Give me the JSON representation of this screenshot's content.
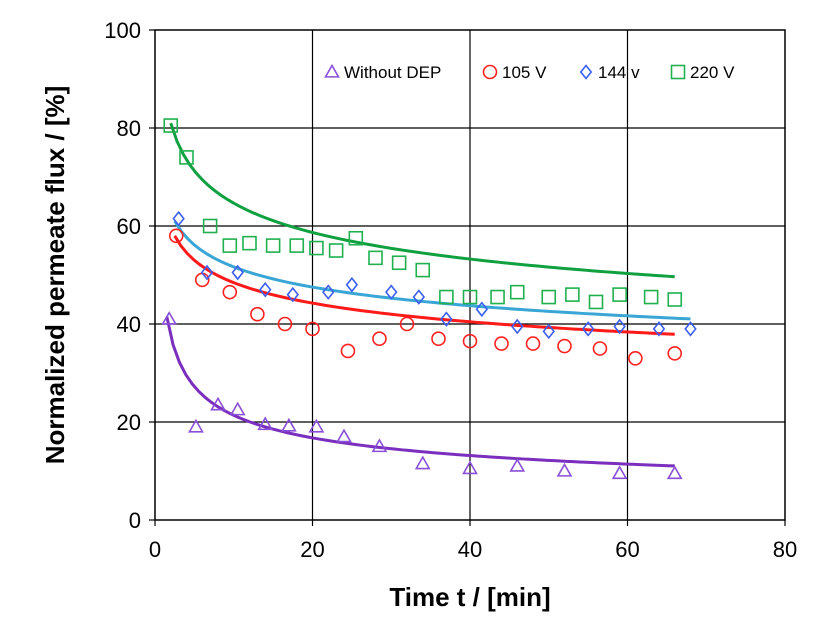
{
  "chart_data": {
    "type": "scatter",
    "title": "",
    "xlabel": "Time t / [min]",
    "ylabel": "Normalized permeate flux / [%]",
    "xlim": [
      0,
      80
    ],
    "ylim": [
      0,
      100
    ],
    "xticks": [
      "0",
      "20",
      "40",
      "60",
      "80"
    ],
    "yticks": [
      "0",
      "20",
      "40",
      "60",
      "80",
      "100"
    ],
    "grid": true,
    "legend_position": "top-right",
    "series": [
      {
        "name": "Without DEP",
        "marker": "triangle",
        "marker_color": "#8a4fd8",
        "fit_color": "#7b2fbe",
        "points": [
          [
            1.8,
            41
          ],
          [
            5.2,
            19
          ],
          [
            8,
            23.5
          ],
          [
            10.5,
            22.5
          ],
          [
            14,
            19.5
          ],
          [
            17,
            19.2
          ],
          [
            20.5,
            19
          ],
          [
            24,
            17
          ],
          [
            28.5,
            15
          ],
          [
            34,
            11.5
          ],
          [
            40,
            10.5
          ],
          [
            46,
            11
          ],
          [
            52,
            10
          ],
          [
            59,
            9.5
          ],
          [
            66,
            9.5
          ]
        ],
        "fit": {
          "a": 41.5,
          "b": 0.35,
          "t_start": 1.5,
          "t_end": 66
        }
      },
      {
        "name": "105 V",
        "marker": "circle",
        "marker_color": "#ff2020",
        "fit_color": "#ff1a1a",
        "points": [
          [
            2.7,
            58
          ],
          [
            6,
            49
          ],
          [
            9.5,
            46.5
          ],
          [
            13,
            42
          ],
          [
            16.5,
            40
          ],
          [
            20,
            39
          ],
          [
            24.5,
            34.5
          ],
          [
            28.5,
            37
          ],
          [
            32,
            40
          ],
          [
            36,
            37
          ],
          [
            40,
            36.5
          ],
          [
            44,
            36
          ],
          [
            48,
            36
          ],
          [
            52,
            35.5
          ],
          [
            56.5,
            35
          ],
          [
            61,
            33
          ],
          [
            66,
            34
          ]
        ],
        "fit": {
          "a": 58,
          "b": 0.13,
          "t_start": 2.5,
          "t_end": 66
        }
      },
      {
        "name": "144 v",
        "marker": "diamond",
        "marker_color": "#3a5ff0",
        "fit_color": "#3aa6d6",
        "points": [
          [
            3,
            61.5
          ],
          [
            6.6,
            50.5
          ],
          [
            10.5,
            50.5
          ],
          [
            14,
            47
          ],
          [
            17.5,
            46
          ],
          [
            22,
            46.5
          ],
          [
            25,
            48
          ],
          [
            30,
            46.5
          ],
          [
            33.5,
            45.5
          ],
          [
            37,
            41
          ],
          [
            41.5,
            43
          ],
          [
            46,
            39.5
          ],
          [
            50,
            38.5
          ],
          [
            55,
            39
          ],
          [
            59,
            39.5
          ],
          [
            64,
            39
          ],
          [
            68,
            39
          ]
        ],
        "fit": {
          "a": 61,
          "b": 0.12,
          "t_start": 2.5,
          "t_end": 68
        }
      },
      {
        "name": "220 V",
        "marker": "square",
        "marker_color": "#20b050",
        "fit_color": "#10a040",
        "points": [
          [
            2,
            80.5
          ],
          [
            4,
            74
          ],
          [
            7,
            60
          ],
          [
            9.5,
            56
          ],
          [
            12,
            56.5
          ],
          [
            15,
            56
          ],
          [
            18,
            56
          ],
          [
            20.5,
            55.5
          ],
          [
            23,
            55
          ],
          [
            25.5,
            57.5
          ],
          [
            28,
            53.5
          ],
          [
            31,
            52.5
          ],
          [
            34,
            51
          ],
          [
            37,
            45.5
          ],
          [
            40,
            45.5
          ],
          [
            43.5,
            45.5
          ],
          [
            46,
            46.5
          ],
          [
            50,
            45.5
          ],
          [
            53,
            46
          ],
          [
            56,
            44.5
          ],
          [
            59,
            46
          ],
          [
            63,
            45.5
          ],
          [
            66,
            45
          ]
        ],
        "fit": {
          "a": 81,
          "b": 0.14,
          "t_start": 2,
          "t_end": 66
        }
      }
    ]
  }
}
